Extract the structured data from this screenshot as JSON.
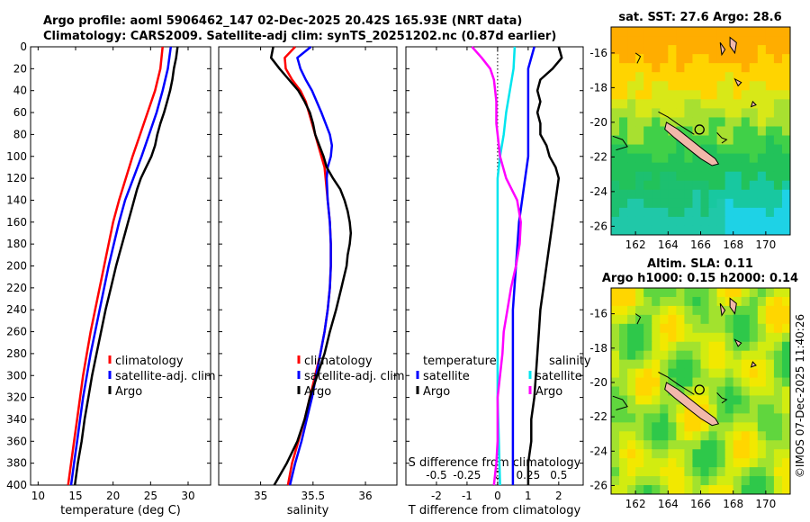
{
  "header": {
    "line1": "Argo profile: aoml 5906462_147 02-Dec-2025 20.42S 165.93E (NRT data)",
    "line2": "Climatology: CARS2009. Satellite-adj clim: synTS_20251202.nc (0.87d earlier)"
  },
  "chart_data": [
    {
      "type": "line",
      "name": "temperature-profile",
      "xlabel": "temperature (deg C)",
      "ylabel": "",
      "xlim": [
        9,
        33
      ],
      "ylim": [
        400,
        0
      ],
      "xticks": [
        10,
        15,
        20,
        25,
        30
      ],
      "yticks": [
        0,
        20,
        40,
        60,
        80,
        100,
        120,
        140,
        160,
        180,
        200,
        220,
        240,
        260,
        280,
        300,
        320,
        340,
        360,
        380,
        400
      ],
      "series": [
        {
          "name": "climatology",
          "color": "#ff0000",
          "depth": [
            0,
            20,
            40,
            60,
            80,
            100,
            120,
            140,
            160,
            180,
            200,
            220,
            240,
            260,
            280,
            300,
            320,
            340,
            360,
            380,
            400
          ],
          "values": [
            26.6,
            26.3,
            25.6,
            24.6,
            23.6,
            22.6,
            21.7,
            20.8,
            20.0,
            19.4,
            18.8,
            18.2,
            17.6,
            17.0,
            16.5,
            16.0,
            15.6,
            15.2,
            14.8,
            14.4,
            14.0
          ]
        },
        {
          "name": "satellite-adj. clim",
          "color": "#0000ff",
          "depth": [
            0,
            20,
            40,
            60,
            80,
            100,
            120,
            140,
            160,
            180,
            200,
            220,
            240,
            260,
            280,
            300,
            320,
            340,
            360,
            380,
            400
          ],
          "values": [
            27.7,
            27.3,
            26.6,
            25.8,
            24.8,
            23.8,
            22.7,
            21.6,
            20.8,
            20.1,
            19.4,
            18.8,
            18.2,
            17.6,
            17.0,
            16.5,
            16.0,
            15.6,
            15.2,
            14.8,
            14.4
          ]
        },
        {
          "name": "Argo",
          "color": "#000000",
          "depth": [
            0,
            10,
            20,
            30,
            40,
            50,
            60,
            70,
            80,
            90,
            100,
            110,
            120,
            130,
            140,
            150,
            160,
            170,
            180,
            190,
            200,
            220,
            240,
            260,
            280,
            300,
            320,
            340,
            360,
            380,
            400
          ],
          "values": [
            28.6,
            28.4,
            28.1,
            27.9,
            27.6,
            27.2,
            26.8,
            26.3,
            25.9,
            25.6,
            25.1,
            24.4,
            23.7,
            23.2,
            22.8,
            22.4,
            22.0,
            21.6,
            21.2,
            20.8,
            20.4,
            19.7,
            19.0,
            18.4,
            17.8,
            17.2,
            16.7,
            16.2,
            15.8,
            15.3,
            14.9
          ]
        }
      ],
      "legend": [
        "climatology",
        "satellite-adj. clim",
        "Argo"
      ]
    },
    {
      "type": "line",
      "name": "salinity-profile",
      "xlabel": "salinity",
      "xlim": [
        34.6,
        36.3
      ],
      "ylim": [
        400,
        0
      ],
      "xticks": [
        35,
        35.5,
        36
      ],
      "series": [
        {
          "name": "climatology",
          "color": "#ff0000",
          "depth": [
            0,
            10,
            20,
            30,
            40,
            50,
            60,
            70,
            80,
            90,
            100,
            110,
            120,
            140,
            160,
            180,
            200,
            220,
            240,
            260,
            280,
            300,
            320,
            340,
            360,
            380,
            400
          ],
          "values": [
            35.33,
            35.23,
            35.24,
            35.3,
            35.38,
            35.43,
            35.46,
            35.49,
            35.52,
            35.55,
            35.58,
            35.61,
            35.62,
            35.64,
            35.66,
            35.67,
            35.67,
            35.66,
            35.64,
            35.61,
            35.57,
            35.52,
            35.47,
            35.42,
            35.36,
            35.3,
            35.26
          ]
        },
        {
          "name": "satellite-adj. clim",
          "color": "#0000ff",
          "depth": [
            0,
            10,
            20,
            30,
            40,
            60,
            80,
            90,
            100,
            110,
            120,
            140,
            160,
            180,
            200,
            220,
            240,
            260,
            280,
            300,
            320,
            340,
            360,
            380,
            400
          ],
          "values": [
            35.48,
            35.35,
            35.38,
            35.43,
            35.49,
            35.58,
            35.66,
            35.68,
            35.67,
            35.64,
            35.63,
            35.64,
            35.66,
            35.67,
            35.67,
            35.66,
            35.64,
            35.61,
            35.57,
            35.53,
            35.49,
            35.44,
            35.39,
            35.33,
            35.28
          ]
        },
        {
          "name": "Argo",
          "color": "#000000",
          "depth": [
            0,
            10,
            20,
            30,
            40,
            50,
            60,
            70,
            80,
            90,
            100,
            110,
            120,
            130,
            140,
            150,
            160,
            170,
            180,
            190,
            200,
            220,
            240,
            260,
            280,
            300,
            320,
            340,
            360,
            380,
            400
          ],
          "values": [
            35.12,
            35.1,
            35.18,
            35.27,
            35.36,
            35.42,
            35.47,
            35.5,
            35.52,
            35.56,
            35.6,
            35.63,
            35.69,
            35.76,
            35.8,
            35.83,
            35.85,
            35.86,
            35.85,
            35.83,
            35.82,
            35.77,
            35.72,
            35.66,
            35.61,
            35.54,
            35.47,
            35.42,
            35.35,
            35.25,
            35.13
          ]
        }
      ],
      "legend": [
        "climatology",
        "satellite-adj. clim",
        "Argo"
      ]
    },
    {
      "type": "line",
      "name": "difference-profile",
      "xlabel": "T difference from climatology",
      "xlabel_top": "S difference from climatology",
      "xlim": [
        -3,
        2.8
      ],
      "ylim": [
        400,
        0
      ],
      "xticks": [
        -2,
        -1,
        0,
        1,
        2
      ],
      "xticks_s": [
        -0.5,
        -0.25,
        0,
        0.25,
        0.5
      ],
      "xtick_labels_s": [
        "-0.5",
        "-0.25",
        "0",
        "0.25",
        "0.5"
      ],
      "series": [
        {
          "name": "T satellite",
          "color": "#0000ff",
          "depth": [
            0,
            20,
            40,
            60,
            80,
            100,
            120,
            140,
            160,
            200,
            240,
            280,
            320,
            360,
            400
          ],
          "values": [
            1.2,
            1.0,
            1.0,
            1.0,
            1.0,
            1.0,
            0.9,
            0.8,
            0.7,
            0.6,
            0.5,
            0.5,
            0.5,
            0.5,
            0.5
          ]
        },
        {
          "name": "T Argo",
          "color": "#000000",
          "depth": [
            0,
            10,
            20,
            30,
            40,
            50,
            60,
            70,
            80,
            90,
            100,
            110,
            120,
            140,
            160,
            180,
            200,
            220,
            240,
            260,
            280,
            300,
            320,
            340,
            360,
            380,
            400
          ],
          "values": [
            2.0,
            2.1,
            1.8,
            1.4,
            1.3,
            1.4,
            1.3,
            1.4,
            1.4,
            1.6,
            1.7,
            1.9,
            2.0,
            1.9,
            1.8,
            1.7,
            1.6,
            1.5,
            1.4,
            1.35,
            1.3,
            1.25,
            1.2,
            1.1,
            1.1,
            1.0,
            1.0
          ]
        },
        {
          "name": "S satellite",
          "color": "#00e5ee",
          "depth": [
            0,
            20,
            40,
            60,
            80,
            100,
            120,
            160,
            200,
            240,
            280,
            320,
            360,
            400
          ],
          "values": [
            0.14,
            0.13,
            0.1,
            0.07,
            0.05,
            0.02,
            0.0,
            0.0,
            0.0,
            0.0,
            0.0,
            0.0,
            0.01,
            0.02
          ]
        },
        {
          "name": "S Argo",
          "color": "#ff00ff",
          "depth": [
            0,
            10,
            20,
            30,
            40,
            50,
            60,
            70,
            80,
            100,
            120,
            140,
            160,
            180,
            200,
            220,
            240,
            260,
            280,
            300,
            320,
            340,
            360,
            380,
            400
          ],
          "values": [
            -0.21,
            -0.13,
            -0.06,
            -0.03,
            -0.02,
            -0.01,
            -0.01,
            -0.01,
            0.0,
            0.02,
            0.07,
            0.16,
            0.19,
            0.18,
            0.15,
            0.11,
            0.08,
            0.05,
            0.04,
            0.02,
            0.0,
            0.0,
            0.0,
            -0.01,
            -0.03
          ]
        }
      ],
      "legend_t": [
        "temperature",
        "satellite",
        "Argo"
      ],
      "legend_s": [
        "salinity",
        "satellite",
        "Argo"
      ]
    },
    {
      "type": "heatmap",
      "name": "sst-map",
      "title": "sat. SST: 27.6 Argo: 28.6",
      "xlim": [
        160.5,
        171.5
      ],
      "ylim": [
        -26.5,
        -14.5
      ],
      "xticks": [
        162,
        164,
        166,
        168,
        170
      ],
      "yticks": [
        -16,
        -18,
        -20,
        -22,
        -24,
        -26
      ],
      "marker": {
        "lon": 165.93,
        "lat": -20.42
      }
    },
    {
      "type": "heatmap",
      "name": "sla-map",
      "title_line1": "Altim. SLA: 0.11",
      "title_line2": "Argo h1000: 0.15 h2000: 0.14",
      "xlim": [
        160.5,
        171.5
      ],
      "ylim": [
        -26.5,
        -14.5
      ],
      "xticks": [
        162,
        164,
        166,
        168,
        170
      ],
      "yticks": [
        -16,
        -18,
        -20,
        -22,
        -24,
        -26
      ],
      "marker": {
        "lon": 165.93,
        "lat": -20.42
      }
    }
  ],
  "footer": {
    "stamp": "©IMOS 07-Dec-2025 11:40:26"
  }
}
